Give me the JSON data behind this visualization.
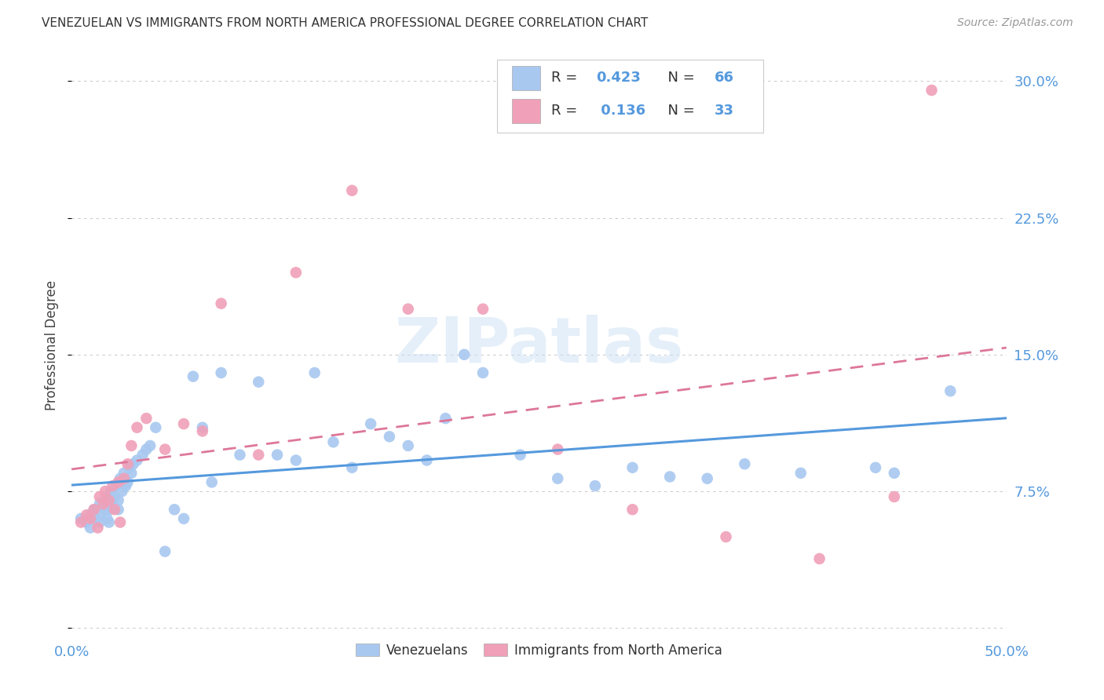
{
  "title": "VENEZUELAN VS IMMIGRANTS FROM NORTH AMERICA PROFESSIONAL DEGREE CORRELATION CHART",
  "source": "Source: ZipAtlas.com",
  "ylabel": "Professional Degree",
  "xlim": [
    0.0,
    0.5
  ],
  "ylim": [
    -0.005,
    0.315
  ],
  "xticks": [
    0.0,
    0.1,
    0.2,
    0.3,
    0.4,
    0.5
  ],
  "xticklabels": [
    "0.0%",
    "",
    "",
    "",
    "",
    "50.0%"
  ],
  "yticks": [
    0.0,
    0.075,
    0.15,
    0.225,
    0.3
  ],
  "yticklabels": [
    "",
    "7.5%",
    "15.0%",
    "22.5%",
    "30.0%"
  ],
  "blue_color": "#A8C8F0",
  "pink_color": "#F0A0B8",
  "blue_line_color": "#5599DD",
  "pink_line_color": "#DD7799",
  "watermark": "ZIPatlas",
  "blue_R": "0.423",
  "blue_N": "66",
  "pink_R": "0.136",
  "pink_N": "33",
  "blue_scatter_x": [
    0.005,
    0.008,
    0.01,
    0.01,
    0.012,
    0.013,
    0.015,
    0.015,
    0.016,
    0.018,
    0.018,
    0.019,
    0.02,
    0.02,
    0.02,
    0.021,
    0.022,
    0.023,
    0.024,
    0.025,
    0.025,
    0.026,
    0.027,
    0.028,
    0.029,
    0.03,
    0.031,
    0.032,
    0.033,
    0.035,
    0.038,
    0.04,
    0.042,
    0.045,
    0.05,
    0.055,
    0.06,
    0.065,
    0.07,
    0.075,
    0.08,
    0.09,
    0.1,
    0.11,
    0.12,
    0.13,
    0.14,
    0.15,
    0.16,
    0.17,
    0.18,
    0.19,
    0.2,
    0.21,
    0.22,
    0.24,
    0.26,
    0.28,
    0.3,
    0.32,
    0.34,
    0.36,
    0.39,
    0.43,
    0.44,
    0.47
  ],
  "blue_scatter_y": [
    0.06,
    0.058,
    0.062,
    0.055,
    0.065,
    0.06,
    0.068,
    0.058,
    0.063,
    0.07,
    0.065,
    0.06,
    0.072,
    0.065,
    0.058,
    0.075,
    0.068,
    0.072,
    0.078,
    0.07,
    0.065,
    0.082,
    0.075,
    0.085,
    0.078,
    0.08,
    0.088,
    0.085,
    0.09,
    0.092,
    0.095,
    0.098,
    0.1,
    0.11,
    0.042,
    0.065,
    0.06,
    0.138,
    0.11,
    0.08,
    0.14,
    0.095,
    0.135,
    0.095,
    0.092,
    0.14,
    0.102,
    0.088,
    0.112,
    0.105,
    0.1,
    0.092,
    0.115,
    0.15,
    0.14,
    0.095,
    0.082,
    0.078,
    0.088,
    0.083,
    0.082,
    0.09,
    0.085,
    0.088,
    0.085,
    0.13
  ],
  "pink_scatter_x": [
    0.005,
    0.008,
    0.01,
    0.012,
    0.014,
    0.015,
    0.017,
    0.018,
    0.02,
    0.022,
    0.023,
    0.025,
    0.026,
    0.028,
    0.03,
    0.032,
    0.035,
    0.04,
    0.05,
    0.06,
    0.07,
    0.08,
    0.1,
    0.12,
    0.15,
    0.18,
    0.22,
    0.26,
    0.3,
    0.35,
    0.4,
    0.44,
    0.46
  ],
  "pink_scatter_y": [
    0.058,
    0.062,
    0.06,
    0.065,
    0.055,
    0.072,
    0.068,
    0.075,
    0.07,
    0.078,
    0.065,
    0.08,
    0.058,
    0.082,
    0.09,
    0.1,
    0.11,
    0.115,
    0.098,
    0.112,
    0.108,
    0.178,
    0.095,
    0.195,
    0.24,
    0.175,
    0.175,
    0.098,
    0.065,
    0.05,
    0.038,
    0.072,
    0.295
  ]
}
